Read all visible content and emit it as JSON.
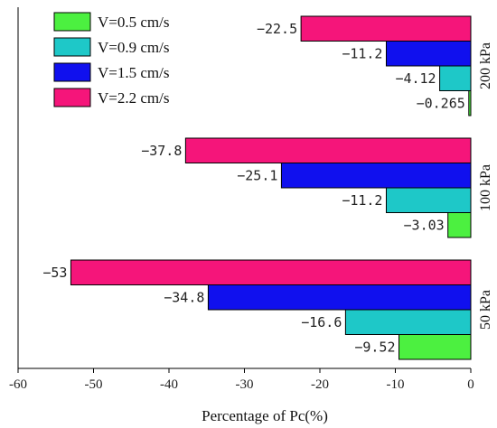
{
  "chart_data": {
    "type": "bar",
    "orientation": "horizontal",
    "xlabel": "Percentage of Pc(%)",
    "xlim": [
      -60,
      0
    ],
    "xticks": [
      "-60",
      "-50",
      "-40",
      "-30",
      "-20",
      "-10",
      "0"
    ],
    "xtick_values": [
      -60,
      -50,
      -40,
      -30,
      -20,
      -10,
      0
    ],
    "categories": [
      "200 kPa",
      "100 kPa",
      "50 kPa"
    ],
    "legend_position": "top-left",
    "series": [
      {
        "name": "V=0.5 cm/s",
        "color": "#4cf040",
        "values": [
          -0.265,
          -3.03,
          -9.52
        ],
        "labels": [
          "-0.265",
          "-3.03",
          "-9.52"
        ]
      },
      {
        "name": "V=0.9 cm/s",
        "color": "#1ec8c8",
        "values": [
          -4.12,
          -11.2,
          -16.6
        ],
        "labels": [
          "-4.12",
          "-11.2",
          "-16.6"
        ]
      },
      {
        "name": "V=1.5 cm/s",
        "color": "#1010ee",
        "values": [
          -11.2,
          -25.1,
          -34.8
        ],
        "labels": [
          "-11.2",
          "-25.1",
          "-34.8"
        ]
      },
      {
        "name": "V=2.2 cm/s",
        "color": "#f5157a",
        "values": [
          -22.5,
          -37.8,
          -53
        ],
        "labels": [
          "-22.5",
          "-37.8",
          "-53"
        ]
      }
    ]
  }
}
